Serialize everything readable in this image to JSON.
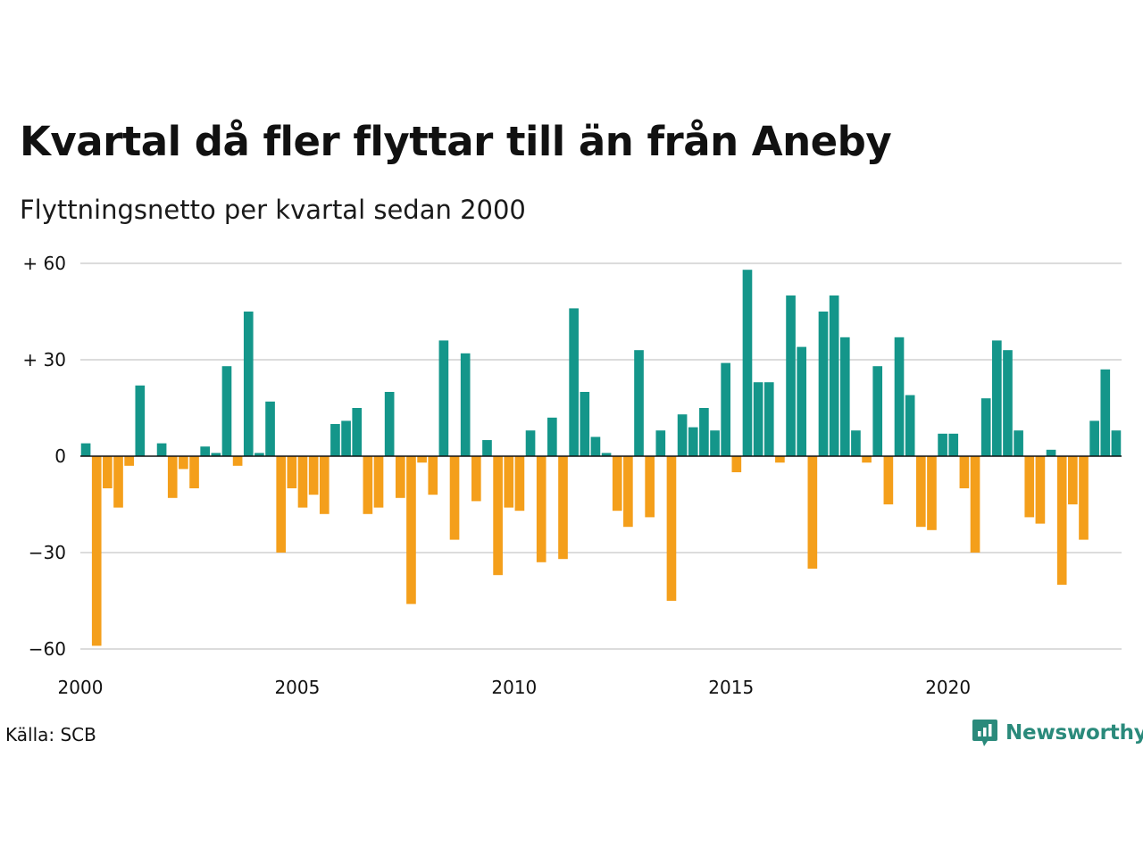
{
  "title": "Kvartal då fler flyttar till än från Aneby",
  "subtitle": "Flyttningsnetto per kvartal sedan 2000",
  "source": "Källa: SCB",
  "brand": {
    "name": "Newsworthy",
    "icon": "newsworthy-logo-icon",
    "color": "#2a8a7b"
  },
  "colors": {
    "positive": "#14968a",
    "negative": "#f49f1b",
    "grid": "#dcdcdc",
    "zero_line": "#111111"
  },
  "chart_data": {
    "type": "bar",
    "x_start": 2000,
    "periods_per_year": 4,
    "ylim": [
      -65,
      62
    ],
    "yticks": [
      {
        "value": 60,
        "label": "+ 60"
      },
      {
        "value": 30,
        "label": "+ 30"
      },
      {
        "value": 0,
        "label": "0"
      },
      {
        "value": -30,
        "label": "−30"
      },
      {
        "value": -60,
        "label": "−60"
      }
    ],
    "xticks": [
      {
        "value": 2000,
        "label": "2000"
      },
      {
        "value": 2005,
        "label": "2005"
      },
      {
        "value": 2010,
        "label": "2010"
      },
      {
        "value": 2015,
        "label": "2015"
      },
      {
        "value": 2020,
        "label": "2020"
      }
    ],
    "grid": true,
    "legend": false,
    "values": [
      4,
      -59,
      -10,
      -16,
      -3,
      22,
      0,
      4,
      -13,
      -4,
      -10,
      3,
      1,
      28,
      -3,
      45,
      1,
      17,
      -30,
      -10,
      -16,
      -12,
      -18,
      10,
      11,
      15,
      -18,
      -16,
      20,
      -13,
      -46,
      -2,
      -12,
      36,
      -26,
      32,
      -14,
      5,
      -37,
      -16,
      -17,
      8,
      -33,
      12,
      -32,
      46,
      20,
      6,
      1,
      -17,
      -22,
      33,
      -19,
      8,
      -45,
      13,
      9,
      15,
      8,
      29,
      -5,
      58,
      23,
      23,
      -2,
      50,
      34,
      -35,
      45,
      50,
      37,
      8,
      -2,
      28,
      -15,
      37,
      19,
      -22,
      -23,
      7,
      7,
      -10,
      -30,
      18,
      36,
      33,
      8,
      -19,
      -21,
      2,
      -40,
      -15,
      -26,
      11,
      27,
      8
    ]
  }
}
